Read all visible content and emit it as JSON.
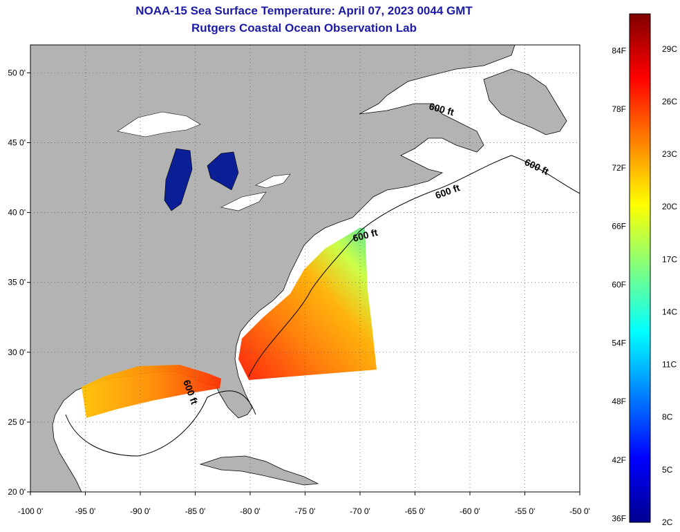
{
  "title": "NOAA-15 Sea Surface Temperature:  April 07, 2023 0044 GMT",
  "subtitle": "Rutgers Coastal Ocean Observation Lab",
  "map": {
    "lon_range": [
      -100,
      -50
    ],
    "lat_range": [
      20,
      52
    ],
    "lon_ticks": [
      "-100 0'",
      "-95 0'",
      "-90 0'",
      "-85 0'",
      "-80 0'",
      "-75 0'",
      "-70 0'",
      "-65 0'",
      "-60 0'",
      "-55 0'",
      "-50 0'"
    ],
    "lat_ticks": [
      "20 0'",
      "25 0'",
      "30 0'",
      "35 0'",
      "40 0'",
      "45 0'",
      "50 0'"
    ],
    "grid": true,
    "land_color": "#b3b3b3",
    "lake_color": "#0a1e96",
    "ocean_color": "#ffffff",
    "contour_labels": [
      "600 ft",
      "600 ft",
      "600 ft",
      "600 ft",
      "600 ft"
    ]
  },
  "colorbar": {
    "min_c": 2,
    "max_c": 31,
    "f_labels": [
      "84F",
      "78F",
      "72F",
      "66F",
      "60F",
      "54F",
      "48F",
      "42F",
      "36F"
    ],
    "c_labels": [
      "29C",
      "26C",
      "23C",
      "20C",
      "17C",
      "14C",
      "11C",
      "8C",
      "5C",
      "2C"
    ],
    "colors": [
      "#00008f",
      "#0000ff",
      "#0080ff",
      "#00ffff",
      "#80ff80",
      "#ffff00",
      "#ff8000",
      "#ff0000",
      "#800000"
    ]
  }
}
